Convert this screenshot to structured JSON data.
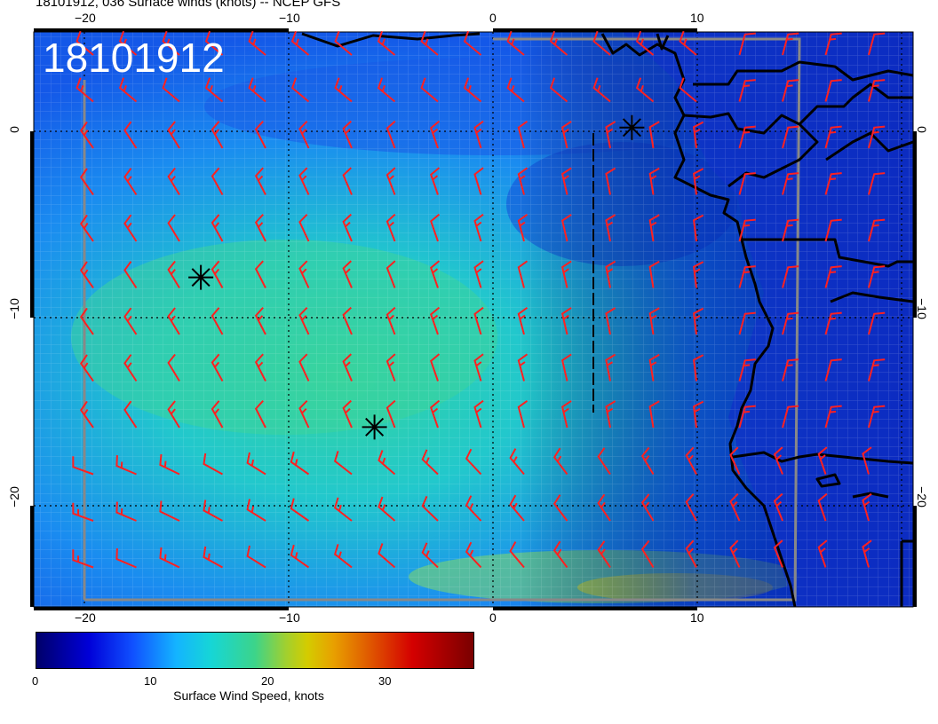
{
  "header": {
    "title": "18101912, 036 Surface winds (knots) -- NCEP GFS",
    "stamp": "18101912"
  },
  "axes": {
    "x_ticks_top": [
      "−20",
      "−10",
      "0",
      "10"
    ],
    "x_ticks_bottom": [
      "−20",
      "−10",
      "0",
      "10"
    ],
    "y_ticks_left": [
      "0",
      "−10",
      "−20"
    ],
    "y_ticks_right": [
      "0",
      "−10",
      "−20"
    ]
  },
  "colorbar": {
    "label": "Surface Wind Speed, knots",
    "ticks": [
      "0",
      "10",
      "20",
      "30"
    ]
  },
  "colors": {
    "barb": "#ff2020",
    "coast": "#000000",
    "grid_line": "#000000"
  },
  "markers": {
    "storm_centers": [
      {
        "lon": -14.3,
        "lat": -7.8
      },
      {
        "lon": -5.8,
        "lat": -15.8
      },
      {
        "lon": 6.8,
        "lat": 0.2
      }
    ]
  }
}
